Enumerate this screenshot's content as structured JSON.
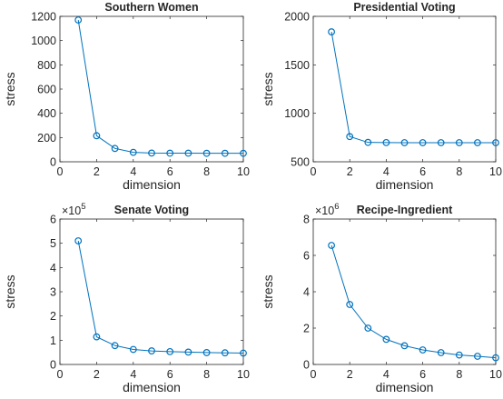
{
  "style": {
    "series_color": "#0072bd",
    "axis_color": "#262626",
    "background": "#ffffff"
  },
  "chart_data": [
    {
      "type": "line",
      "title": "Southern Women",
      "xlabel": "dimension",
      "ylabel": "stress",
      "xlim": [
        0,
        10
      ],
      "ylim": [
        0,
        1200
      ],
      "xticks": [
        0,
        2,
        4,
        6,
        8,
        10
      ],
      "yticks": [
        0,
        200,
        400,
        600,
        800,
        1000,
        1200
      ],
      "exponent": null,
      "grid": false,
      "marker": "circle",
      "x": [
        1,
        2,
        3,
        4,
        5,
        6,
        7,
        8,
        9,
        10
      ],
      "y": [
        1170,
        215,
        110,
        78,
        72,
        71,
        71,
        70,
        70,
        70
      ]
    },
    {
      "type": "line",
      "title": "Presidential Voting",
      "xlabel": "dimension",
      "ylabel": "stress",
      "xlim": [
        0,
        10
      ],
      "ylim": [
        500,
        2000
      ],
      "xticks": [
        0,
        2,
        4,
        6,
        8,
        10
      ],
      "yticks": [
        500,
        1000,
        1500,
        2000
      ],
      "exponent": null,
      "grid": false,
      "marker": "circle",
      "x": [
        1,
        2,
        3,
        4,
        5,
        6,
        7,
        8,
        9,
        10
      ],
      "y": [
        1840,
        760,
        700,
        698,
        697,
        697,
        697,
        697,
        697,
        697
      ]
    },
    {
      "type": "line",
      "title": "Senate Voting",
      "xlabel": "dimension",
      "ylabel": "stress",
      "xlim": [
        0,
        10
      ],
      "ylim": [
        0,
        6
      ],
      "xticks": [
        0,
        2,
        4,
        6,
        8,
        10
      ],
      "yticks": [
        0,
        1,
        2,
        3,
        4,
        5,
        6
      ],
      "exponent": "5",
      "grid": false,
      "marker": "circle",
      "x": [
        1,
        2,
        3,
        4,
        5,
        6,
        7,
        8,
        9,
        10
      ],
      "y": [
        5.1,
        1.14,
        0.78,
        0.62,
        0.56,
        0.53,
        0.51,
        0.49,
        0.48,
        0.47
      ]
    },
    {
      "type": "line",
      "title": "Recipe-Ingredient",
      "xlabel": "dimension",
      "ylabel": "stress",
      "xlim": [
        0,
        10
      ],
      "ylim": [
        0,
        8
      ],
      "xticks": [
        0,
        2,
        4,
        6,
        8,
        10
      ],
      "yticks": [
        0,
        2,
        4,
        6,
        8
      ],
      "exponent": "6",
      "grid": false,
      "marker": "circle",
      "x": [
        1,
        2,
        3,
        4,
        5,
        6,
        7,
        8,
        9,
        10
      ],
      "y": [
        6.55,
        3.3,
        2.0,
        1.38,
        1.03,
        0.8,
        0.65,
        0.52,
        0.45,
        0.37
      ]
    }
  ]
}
